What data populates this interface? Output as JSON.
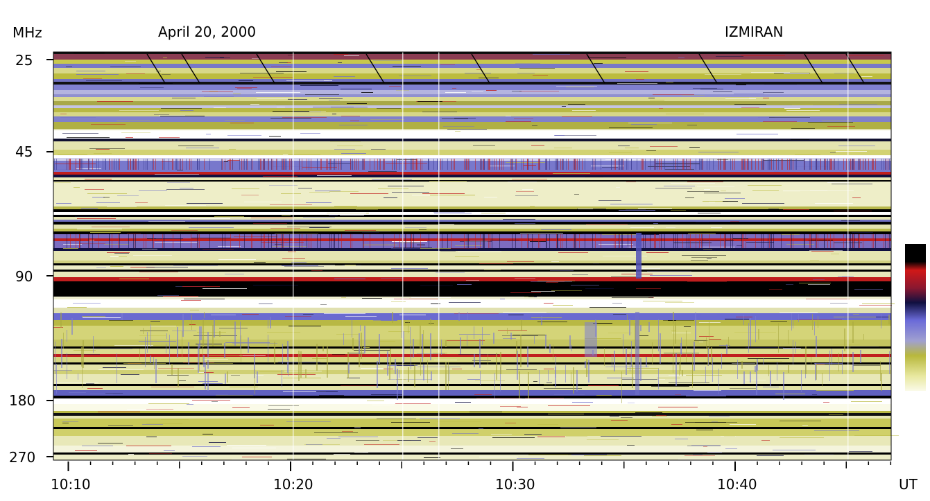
{
  "header": {
    "unit_label": "MHz",
    "date": "April 20, 2000",
    "observatory": "IZMIRAN"
  },
  "chart_data": {
    "type": "heatmap",
    "title": "April 20, 2000",
    "xlabel": "UT",
    "ylabel": "MHz",
    "x_range": [
      "10:09:14",
      "10:46:54"
    ],
    "x_ticks": [
      "10:10",
      "10:20",
      "10:30",
      "10:40"
    ],
    "y_scale": "log (inverted, high frequency at bottom)",
    "y_range_mhz": [
      25,
      270
    ],
    "y_ticks": [
      "25",
      "45",
      "90",
      "180",
      "270"
    ],
    "colorbar": {
      "position": "right",
      "colors_high_to_low": [
        "#000000",
        "#d01818",
        "#101040",
        "#6a6ad8",
        "#b8b83c",
        "#fafae8"
      ]
    },
    "features": [
      {
        "name": "fast drift bursts",
        "freq_mhz": [
          25,
          30
        ]
      },
      {
        "name": "strong interference band",
        "freq_mhz": [
          88,
          98
        ]
      },
      {
        "name": "bright vertical feature",
        "time": "10:35:30",
        "freq_mhz": [
          55,
          180
        ]
      }
    ]
  }
}
